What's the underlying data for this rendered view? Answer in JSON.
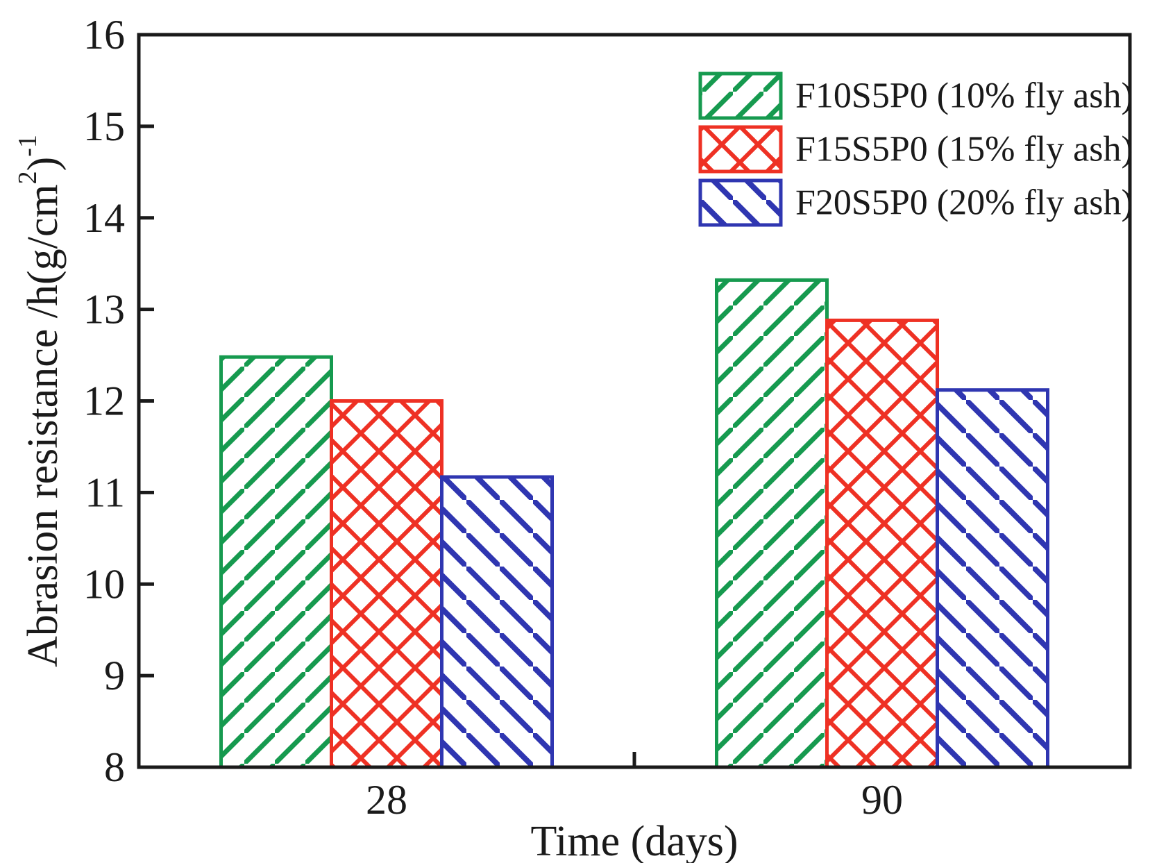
{
  "chart_data": {
    "type": "bar",
    "title": "",
    "xlabel": "Time (days)",
    "ylabel": {
      "text": "Abrasion resistance /h(g/cm2)-1",
      "prefix": "Abrasion resistance /h(g/cm",
      "sup1": "2",
      "mid": ")",
      "sup2": "-1"
    },
    "categories": [
      "28",
      "90"
    ],
    "series": [
      {
        "name": "F10S5P0 (10% fly ash)",
        "color": "#169a4f",
        "hatch": "forward",
        "values": [
          12.48,
          13.32
        ]
      },
      {
        "name": "F15S5P0 (15% fly ash)",
        "color": "#ee3124",
        "hatch": "cross",
        "values": [
          12.0,
          12.88
        ]
      },
      {
        "name": "F20S5P0 (20% fly ash)",
        "color": "#2f36b1",
        "hatch": "backward",
        "values": [
          11.17,
          12.12
        ]
      }
    ],
    "ylim": [
      8,
      16
    ],
    "yticks": [
      8,
      9,
      10,
      11,
      12,
      13,
      14,
      15,
      16
    ],
    "grid": false,
    "legend_position": "top-right",
    "axis_color": "#1a1a1a"
  }
}
